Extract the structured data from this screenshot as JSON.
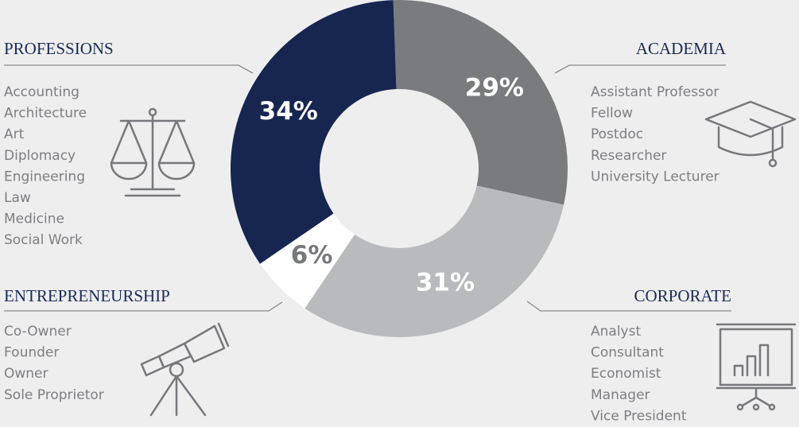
{
  "chart_data": {
    "type": "pie",
    "donut": true,
    "categories": [
      "ACADEMIA",
      "CORPORATE",
      "ENTREPRENEURSHIP",
      "PROFESSIONS"
    ],
    "values": [
      29,
      31,
      6,
      34
    ],
    "value_labels": [
      "29%",
      "31%",
      "6%",
      "34%"
    ],
    "colors": [
      "#7a7b7f",
      "#b9babd",
      "#ffffff",
      "#172650"
    ],
    "label_colors": [
      "#ffffff",
      "#ffffff",
      "#77787c",
      "#ffffff"
    ],
    "items": [
      [
        "Assistant Professor",
        "Fellow",
        "Postdoc",
        "Researcher",
        "University Lecturer"
      ],
      [
        "Analyst",
        "Consultant",
        "Economist",
        "Manager",
        "Vice President"
      ],
      [
        "Co-Owner",
        "Founder",
        "Owner",
        "Sole Proprietor"
      ],
      [
        "Accounting",
        "Architecture",
        "Art",
        "Diplomacy",
        "Engineering",
        "Law",
        "Medicine",
        "Social Work"
      ]
    ]
  }
}
